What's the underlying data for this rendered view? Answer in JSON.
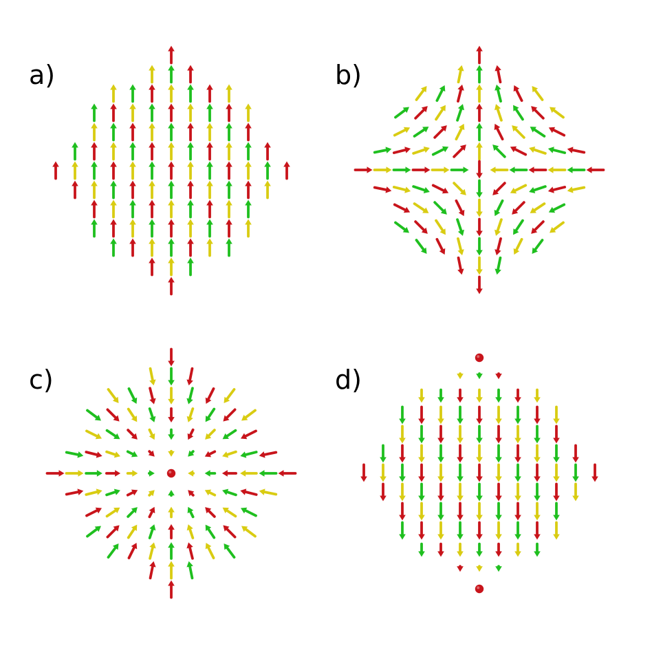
{
  "colors": {
    "red": "#c8141b",
    "yellow": "#d9cc12",
    "green": "#1fbf1f",
    "background": "#ffffff"
  },
  "panels": [
    {
      "id": "a",
      "label": "a)",
      "texture": "uniform-up"
    },
    {
      "id": "b",
      "label": "b)",
      "texture": "hyperbolic-saddle"
    },
    {
      "id": "c",
      "label": "c)",
      "texture": "radial-inward-hedgehog"
    },
    {
      "id": "d",
      "label": "d)",
      "texture": "uniform-down-with-vortical-edges"
    }
  ]
}
